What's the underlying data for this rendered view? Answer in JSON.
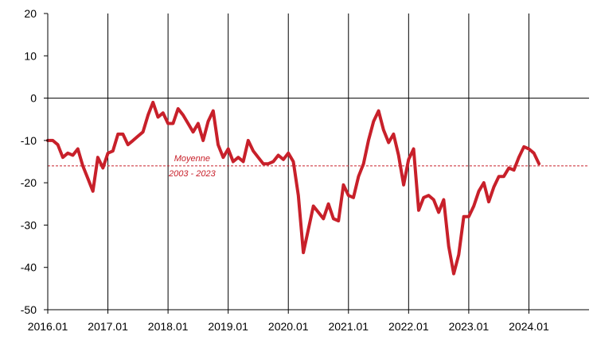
{
  "chart_data": {
    "type": "line",
    "title": "",
    "xlabel": "",
    "ylabel": "",
    "ylim": [
      -50,
      20
    ],
    "y_ticks": [
      20,
      10,
      0,
      -10,
      -20,
      -30,
      -40,
      -50
    ],
    "x_ticks": [
      "2016.01",
      "2017.01",
      "2018.01",
      "2019.01",
      "2020.01",
      "2021.01",
      "2022.01",
      "2023.01",
      "2024.01"
    ],
    "x_tick_years": [
      2016,
      2017,
      2018,
      2019,
      2020,
      2021,
      2022,
      2023,
      2024
    ],
    "xlim": [
      2016.0,
      2025.0
    ],
    "grid": "vertical at year ticks",
    "series": [
      {
        "color": "#C8202A",
        "x": [
          2016.0,
          2016.083,
          2016.167,
          2016.25,
          2016.333,
          2016.417,
          2016.5,
          2016.583,
          2016.667,
          2016.75,
          2016.833,
          2016.917,
          2017.0,
          2017.083,
          2017.167,
          2017.25,
          2017.333,
          2017.417,
          2017.5,
          2017.583,
          2017.667,
          2017.75,
          2017.833,
          2017.917,
          2018.0,
          2018.083,
          2018.167,
          2018.25,
          2018.333,
          2018.417,
          2018.5,
          2018.583,
          2018.667,
          2018.75,
          2018.833,
          2018.917,
          2019.0,
          2019.083,
          2019.167,
          2019.25,
          2019.333,
          2019.417,
          2019.5,
          2019.583,
          2019.667,
          2019.75,
          2019.833,
          2019.917,
          2020.0,
          2020.083,
          2020.167,
          2020.25,
          2020.333,
          2020.417,
          2020.5,
          2020.583,
          2020.667,
          2020.75,
          2020.833,
          2020.917,
          2021.0,
          2021.083,
          2021.167,
          2021.25,
          2021.333,
          2021.417,
          2021.5,
          2021.583,
          2021.667,
          2021.75,
          2021.833,
          2021.917,
          2022.0,
          2022.083,
          2022.167,
          2022.25,
          2022.333,
          2022.417,
          2022.5,
          2022.583,
          2022.667,
          2022.75,
          2022.833,
          2022.917,
          2023.0,
          2023.083,
          2023.167,
          2023.25,
          2023.333,
          2023.417,
          2023.5,
          2023.583,
          2023.667,
          2023.75,
          2023.833,
          2023.917,
          2024.0,
          2024.083,
          2024.167
        ],
        "values": [
          -10,
          -10,
          -11,
          -14,
          -13,
          -13.5,
          -12,
          -16,
          -19,
          -22,
          -14,
          -16.5,
          -13,
          -12.5,
          -8.5,
          -8.5,
          -11,
          -10,
          -9,
          -8,
          -4,
          -1,
          -4.5,
          -3.5,
          -6,
          -6,
          -2.5,
          -4,
          -6,
          -8,
          -6,
          -10,
          -5.5,
          -3,
          -11,
          -14,
          -12,
          -15,
          -14,
          -15,
          -10,
          -12.5,
          -14,
          -15.5,
          -15.5,
          -15,
          -13.5,
          -14.5,
          -13,
          -15,
          -23,
          -36.5,
          -31,
          -25.5,
          -27,
          -28.5,
          -25,
          -28.5,
          -29,
          -20.5,
          -23,
          -23.5,
          -18.5,
          -15.5,
          -10,
          -5.5,
          -3,
          -7.5,
          -10.5,
          -8.5,
          -13.5,
          -20.5,
          -14.5,
          -12,
          -26.5,
          -23.5,
          -23,
          -24,
          -27,
          -24,
          -35,
          -41.5,
          -37,
          -28,
          -28,
          -25.5,
          -22,
          -20,
          -24.5,
          -21,
          -18.5,
          -18.5,
          -16.5,
          -17,
          -14,
          -11.5,
          -12,
          -13,
          -15.5
        ]
      }
    ],
    "reference_line": {
      "value": -16,
      "label_line1": "Moyenne",
      "label_line2": "2003 - 2023",
      "color": "#C8202A"
    }
  }
}
